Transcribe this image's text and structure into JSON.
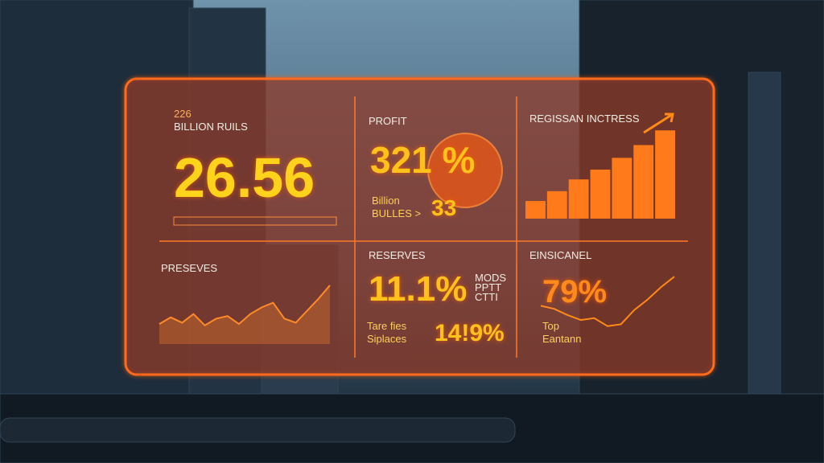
{
  "chart_data": [
    {
      "type": "bar",
      "title": "REGISSAN INCTRESS",
      "values": [
        18,
        28,
        40,
        50,
        62,
        75,
        90
      ],
      "color": "#ff7a1a",
      "ylim": [
        0,
        100
      ]
    },
    {
      "type": "area",
      "title": "PRESEVES",
      "values": [
        30,
        40,
        32,
        45,
        28,
        38,
        42,
        30,
        45,
        55,
        62,
        38,
        32,
        50,
        68,
        88
      ],
      "color": "#ff8a2a",
      "ylim": [
        0,
        100
      ]
    },
    {
      "type": "line",
      "title": "EINSICANEL",
      "values": [
        45,
        40,
        30,
        22,
        25,
        12,
        15,
        38,
        55,
        75,
        92
      ],
      "color": "#ff8a1a",
      "ylim": [
        0,
        100
      ]
    }
  ],
  "panels": {
    "revenue": {
      "small": "226",
      "label": "BILLION RUILS",
      "value": "26.56"
    },
    "profit": {
      "label": "PROFIT",
      "value": "321 %",
      "sub1": "Billion",
      "sub2": "BULLES >",
      "sub3": "33"
    },
    "reserves": {
      "label": "RESERVES",
      "value": "11.1%",
      "side": [
        "MODS",
        "PPTT",
        "CTTI"
      ],
      "sub1": "Tare fies",
      "sub2": "Siplaces",
      "value2": "14!9%"
    },
    "insight": {
      "value": "79%",
      "sub1": "Top",
      "sub2": "Eantann"
    }
  }
}
